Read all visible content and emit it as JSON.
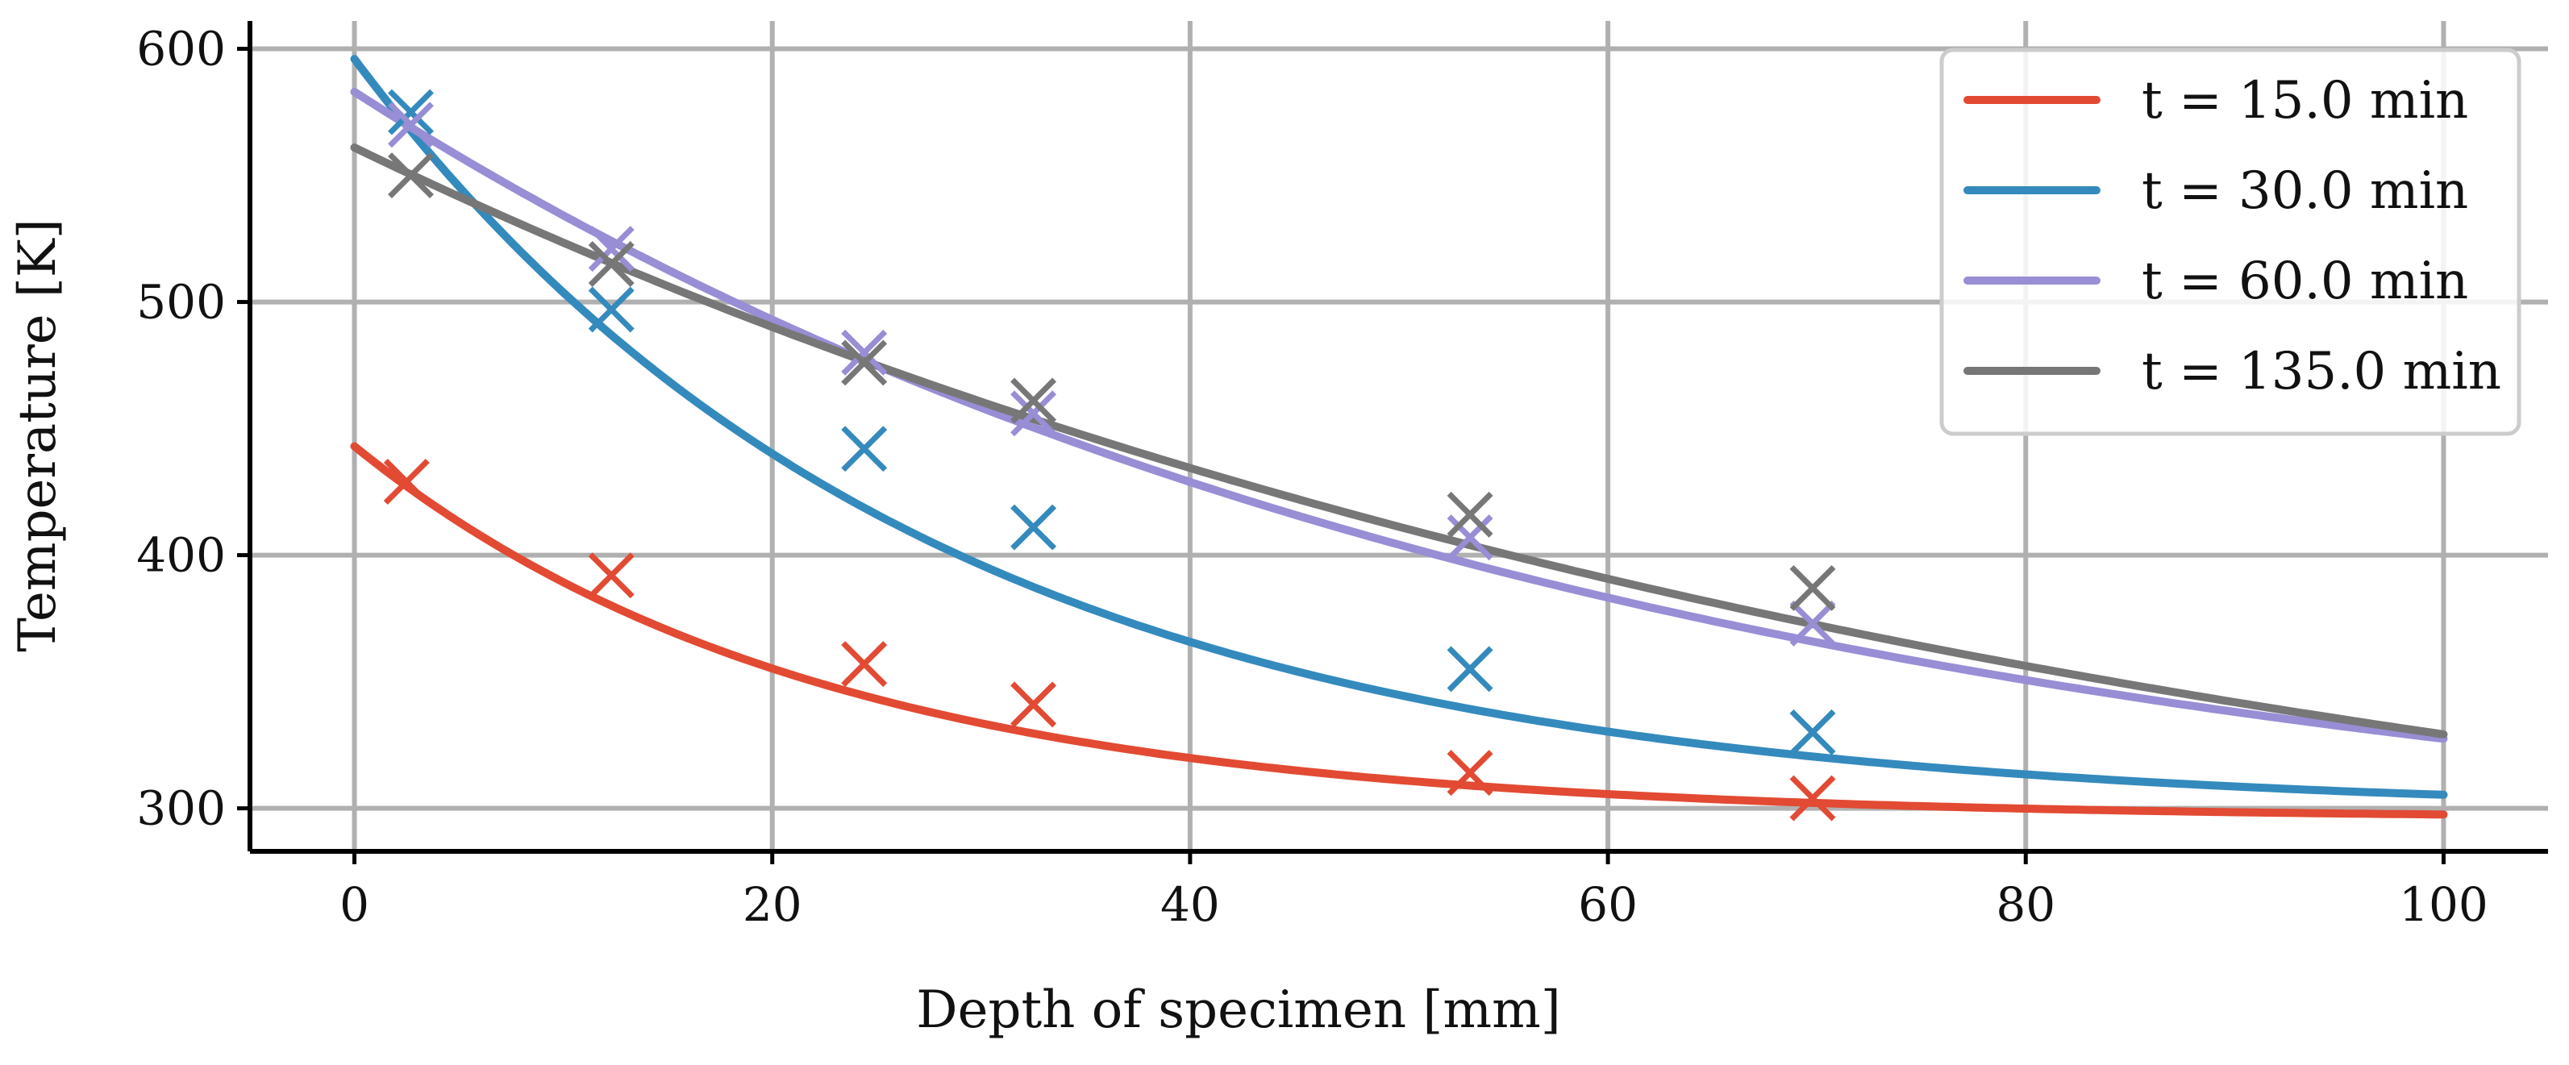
{
  "chart_data": {
    "type": "line",
    "title": "",
    "xlabel": "Depth of specimen [mm]",
    "ylabel": "Temperature [K]",
    "xlim": [
      -5,
      105
    ],
    "ylim": [
      283,
      611
    ],
    "xticks": [
      0,
      20,
      40,
      60,
      80,
      100
    ],
    "yticks": [
      300,
      400,
      500,
      600
    ],
    "grid": true,
    "legend_location": "top-right",
    "series": [
      {
        "name": "t = 15.0 min",
        "color": "#e24a33",
        "line": {
          "model": "exponential",
          "T_inf": 296,
          "amplitude": 147,
          "decay_length_mm": 22
        },
        "points": [
          {
            "x": 2.5,
            "y": 429
          },
          {
            "x": 12.3,
            "y": 392
          },
          {
            "x": 24.4,
            "y": 357
          },
          {
            "x": 32.5,
            "y": 341
          },
          {
            "x": 53.4,
            "y": 314
          },
          {
            "x": 69.8,
            "y": 304
          }
        ]
      },
      {
        "name": "t = 30.0 min",
        "color": "#348abd",
        "line": {
          "model": "exponential",
          "T_inf": 298,
          "amplitude": 298,
          "decay_length_mm": 27
        },
        "points": [
          {
            "x": 2.7,
            "y": 575
          },
          {
            "x": 12.3,
            "y": 497
          },
          {
            "x": 24.4,
            "y": 442
          },
          {
            "x": 32.5,
            "y": 411
          },
          {
            "x": 53.4,
            "y": 355
          },
          {
            "x": 69.8,
            "y": 330
          }
        ]
      },
      {
        "name": "t = 60.0 min",
        "color": "#988ed5",
        "line": {
          "model": "exponential",
          "T_inf": 270,
          "amplitude": 313,
          "decay_length_mm": 59
        },
        "points": [
          {
            "x": 2.7,
            "y": 570
          },
          {
            "x": 12.3,
            "y": 521
          },
          {
            "x": 24.4,
            "y": 480
          },
          {
            "x": 32.5,
            "y": 456
          },
          {
            "x": 53.4,
            "y": 407
          },
          {
            "x": 69.8,
            "y": 373
          }
        ]
      },
      {
        "name": "t = 135.0 min",
        "color": "#777777",
        "line": {
          "model": "exponential",
          "T_inf": 230,
          "amplitude": 331,
          "decay_length_mm": 83
        },
        "points": [
          {
            "x": 2.7,
            "y": 550
          },
          {
            "x": 12.3,
            "y": 515
          },
          {
            "x": 24.4,
            "y": 476
          },
          {
            "x": 32.5,
            "y": 461
          },
          {
            "x": 53.4,
            "y": 416
          },
          {
            "x": 69.8,
            "y": 387
          }
        ]
      }
    ]
  }
}
